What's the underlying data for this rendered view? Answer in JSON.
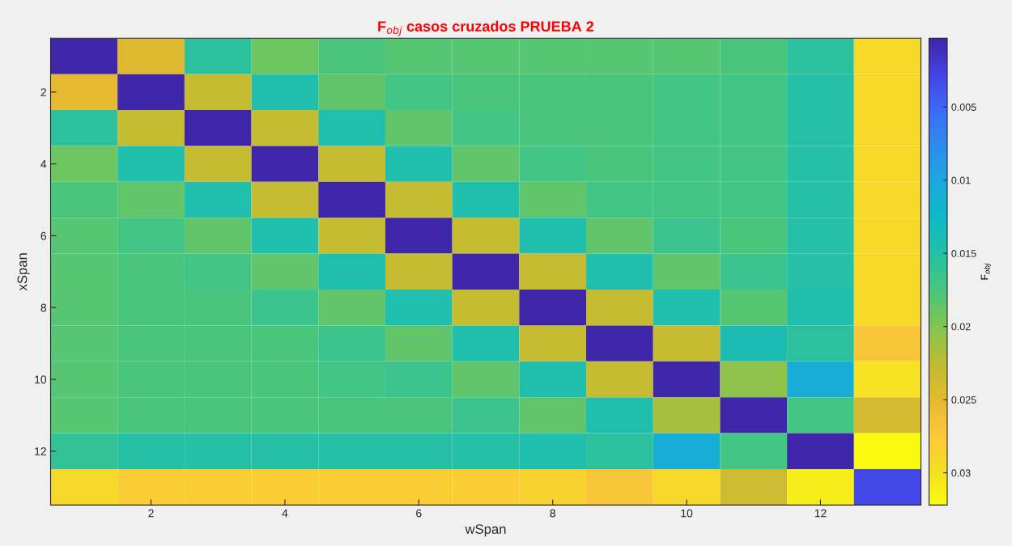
{
  "chart_data": {
    "type": "heatmap",
    "title": "F$_{obj}$ casos cruzados PRUEBA 2",
    "xlabel": "wSpan",
    "ylabel": "xSpan",
    "clabel": "F$_{obj}$",
    "categories": [
      null,
      "2",
      null,
      "4",
      null,
      "6",
      null,
      "8",
      null,
      "10",
      null,
      "12",
      null
    ],
    "y_categories": [
      null,
      "2",
      null,
      "4",
      null,
      "6",
      null,
      "8",
      null,
      "10",
      null,
      "12",
      null
    ],
    "cells": [
      [
        0.0003,
        0.0245,
        0.0155,
        0.019,
        0.0175,
        0.018,
        0.018,
        0.018,
        0.018,
        0.018,
        0.0175,
        0.0155,
        0.029
      ],
      [
        0.025,
        0.0003,
        0.023,
        0.0145,
        0.0185,
        0.017,
        0.0175,
        0.0175,
        0.0175,
        0.017,
        0.017,
        0.015,
        0.029
      ],
      [
        0.0155,
        0.023,
        0.0003,
        0.023,
        0.0145,
        0.0185,
        0.017,
        0.0175,
        0.0175,
        0.017,
        0.017,
        0.015,
        0.029
      ],
      [
        0.019,
        0.0145,
        0.023,
        0.0003,
        0.023,
        0.0145,
        0.0185,
        0.017,
        0.0175,
        0.017,
        0.017,
        0.015,
        0.029
      ],
      [
        0.0175,
        0.0185,
        0.0145,
        0.023,
        0.0003,
        0.023,
        0.0145,
        0.0185,
        0.017,
        0.017,
        0.017,
        0.015,
        0.029
      ],
      [
        0.018,
        0.017,
        0.0185,
        0.0145,
        0.023,
        0.0003,
        0.023,
        0.0145,
        0.0185,
        0.0165,
        0.0175,
        0.015,
        0.029
      ],
      [
        0.018,
        0.0175,
        0.017,
        0.0185,
        0.0145,
        0.023,
        0.0003,
        0.023,
        0.0145,
        0.0185,
        0.0165,
        0.015,
        0.029
      ],
      [
        0.018,
        0.0175,
        0.0175,
        0.0165,
        0.0185,
        0.0145,
        0.023,
        0.0003,
        0.023,
        0.0145,
        0.018,
        0.0145,
        0.029
      ],
      [
        0.018,
        0.0175,
        0.0175,
        0.0175,
        0.0165,
        0.0185,
        0.0145,
        0.023,
        0.0003,
        0.023,
        0.014,
        0.0155,
        0.027
      ],
      [
        0.018,
        0.0175,
        0.0175,
        0.0175,
        0.017,
        0.0165,
        0.0185,
        0.0145,
        0.023,
        0.0003,
        0.0205,
        0.011,
        0.03
      ],
      [
        0.018,
        0.0175,
        0.0175,
        0.0175,
        0.0175,
        0.0175,
        0.0165,
        0.0185,
        0.0145,
        0.0215,
        0.0003,
        0.017,
        0.024
      ],
      [
        0.016,
        0.015,
        0.015,
        0.015,
        0.015,
        0.015,
        0.015,
        0.0145,
        0.0155,
        0.011,
        0.017,
        0.0003,
        0.032
      ],
      [
        0.029,
        0.028,
        0.028,
        0.028,
        0.028,
        0.028,
        0.028,
        0.0285,
        0.027,
        0.029,
        0.0235,
        0.031,
        0.003
      ]
    ],
    "clim": [
      0.0322,
      0.0003
    ],
    "cticks": [
      0.005,
      0.01,
      0.015,
      0.02,
      0.025,
      0.03
    ]
  }
}
